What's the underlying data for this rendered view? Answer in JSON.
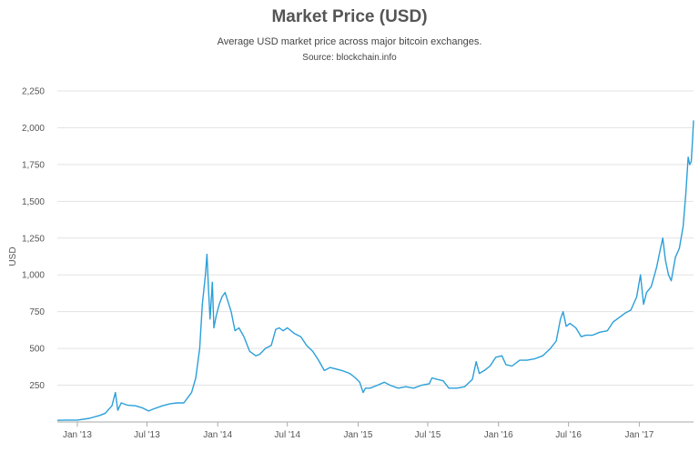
{
  "chart_data": {
    "type": "line",
    "title": "Market Price (USD)",
    "subtitle": "Average USD market price across major bitcoin exchanges.",
    "source": "Source: blockchain.info",
    "xlabel": "",
    "ylabel": "USD",
    "ylim": [
      0,
      2250
    ],
    "yticks": [
      250,
      500,
      750,
      1000,
      1250,
      1500,
      1750,
      2000,
      2250
    ],
    "ytick_labels": [
      "250",
      "500",
      "750",
      "1,000",
      "1,250",
      "1,500",
      "1,750",
      "2,000",
      "2,250"
    ],
    "xticks": [
      "2013-01-01",
      "2013-07-01",
      "2014-01-01",
      "2014-07-01",
      "2015-01-01",
      "2015-07-01",
      "2016-01-01",
      "2016-07-01",
      "2017-01-01"
    ],
    "xtick_labels": [
      "Jan '13",
      "Jul '13",
      "Jan '14",
      "Jul '14",
      "Jan '15",
      "Jul '15",
      "Jan '16",
      "Jul '16",
      "Jan '17"
    ],
    "xlim": [
      "2012-11-10",
      "2017-05-22"
    ],
    "grid": true,
    "line_color": "#2b9fd9",
    "series": [
      {
        "x": [
          "2012-11-10",
          "2012-12-01",
          "2013-01-01",
          "2013-02-01",
          "2013-03-01",
          "2013-03-15",
          "2013-04-01",
          "2013-04-10",
          "2013-04-16",
          "2013-04-25",
          "2013-05-10",
          "2013-06-01",
          "2013-06-20",
          "2013-07-05",
          "2013-07-20",
          "2013-08-10",
          "2013-09-01",
          "2013-09-20",
          "2013-10-05",
          "2013-10-25",
          "2013-11-05",
          "2013-11-15",
          "2013-11-22",
          "2013-11-30",
          "2013-12-04",
          "2013-12-08",
          "2013-12-12",
          "2013-12-18",
          "2013-12-22",
          "2013-12-28",
          "2014-01-05",
          "2014-01-12",
          "2014-01-20",
          "2014-02-05",
          "2014-02-15",
          "2014-02-25",
          "2014-03-10",
          "2014-03-25",
          "2014-04-10",
          "2014-04-20",
          "2014-05-05",
          "2014-05-20",
          "2014-06-01",
          "2014-06-10",
          "2014-06-20",
          "2014-07-01",
          "2014-07-20",
          "2014-08-05",
          "2014-08-20",
          "2014-09-05",
          "2014-09-20",
          "2014-10-05",
          "2014-10-20",
          "2014-11-05",
          "2014-11-20",
          "2014-12-10",
          "2014-12-25",
          "2015-01-05",
          "2015-01-14",
          "2015-01-20",
          "2015-02-01",
          "2015-02-20",
          "2015-03-10",
          "2015-03-25",
          "2015-04-15",
          "2015-05-05",
          "2015-05-25",
          "2015-06-15",
          "2015-07-05",
          "2015-07-12",
          "2015-07-25",
          "2015-08-10",
          "2015-08-25",
          "2015-09-15",
          "2015-10-05",
          "2015-10-25",
          "2015-11-04",
          "2015-11-12",
          "2015-11-25",
          "2015-12-10",
          "2015-12-25",
          "2016-01-10",
          "2016-01-20",
          "2016-02-05",
          "2016-02-25",
          "2016-03-15",
          "2016-04-05",
          "2016-04-25",
          "2016-05-15",
          "2016-05-30",
          "2016-06-10",
          "2016-06-17",
          "2016-06-25",
          "2016-07-05",
          "2016-07-20",
          "2016-08-03",
          "2016-08-15",
          "2016-09-01",
          "2016-09-20",
          "2016-10-10",
          "2016-10-25",
          "2016-11-10",
          "2016-11-25",
          "2016-12-10",
          "2016-12-25",
          "2017-01-04",
          "2017-01-12",
          "2017-01-20",
          "2017-02-01",
          "2017-02-15",
          "2017-02-25",
          "2017-03-03",
          "2017-03-10",
          "2017-03-18",
          "2017-03-25",
          "2017-04-05",
          "2017-04-15",
          "2017-04-25",
          "2017-05-02",
          "2017-05-08",
          "2017-05-12",
          "2017-05-16",
          "2017-05-20",
          "2017-05-22"
        ],
        "y": [
          11,
          13,
          13,
          25,
          45,
          60,
          110,
          200,
          80,
          130,
          115,
          110,
          95,
          75,
          90,
          110,
          125,
          130,
          130,
          200,
          300,
          500,
          800,
          1000,
          1140,
          900,
          700,
          950,
          640,
          720,
          800,
          850,
          880,
          750,
          620,
          640,
          580,
          480,
          450,
          460,
          500,
          520,
          630,
          640,
          620,
          640,
          600,
          580,
          520,
          480,
          420,
          350,
          370,
          360,
          350,
          330,
          300,
          270,
          200,
          230,
          230,
          250,
          270,
          250,
          230,
          240,
          230,
          250,
          260,
          300,
          290,
          280,
          230,
          230,
          240,
          290,
          410,
          330,
          350,
          380,
          440,
          450,
          390,
          380,
          420,
          420,
          430,
          450,
          500,
          550,
          700,
          750,
          650,
          670,
          640,
          580,
          590,
          590,
          610,
          620,
          680,
          710,
          740,
          760,
          850,
          1000,
          800,
          880,
          920,
          1050,
          1180,
          1250,
          1100,
          1000,
          960,
          1120,
          1180,
          1330,
          1550,
          1800,
          1750,
          1770,
          1950,
          2050
        ]
      }
    ]
  }
}
